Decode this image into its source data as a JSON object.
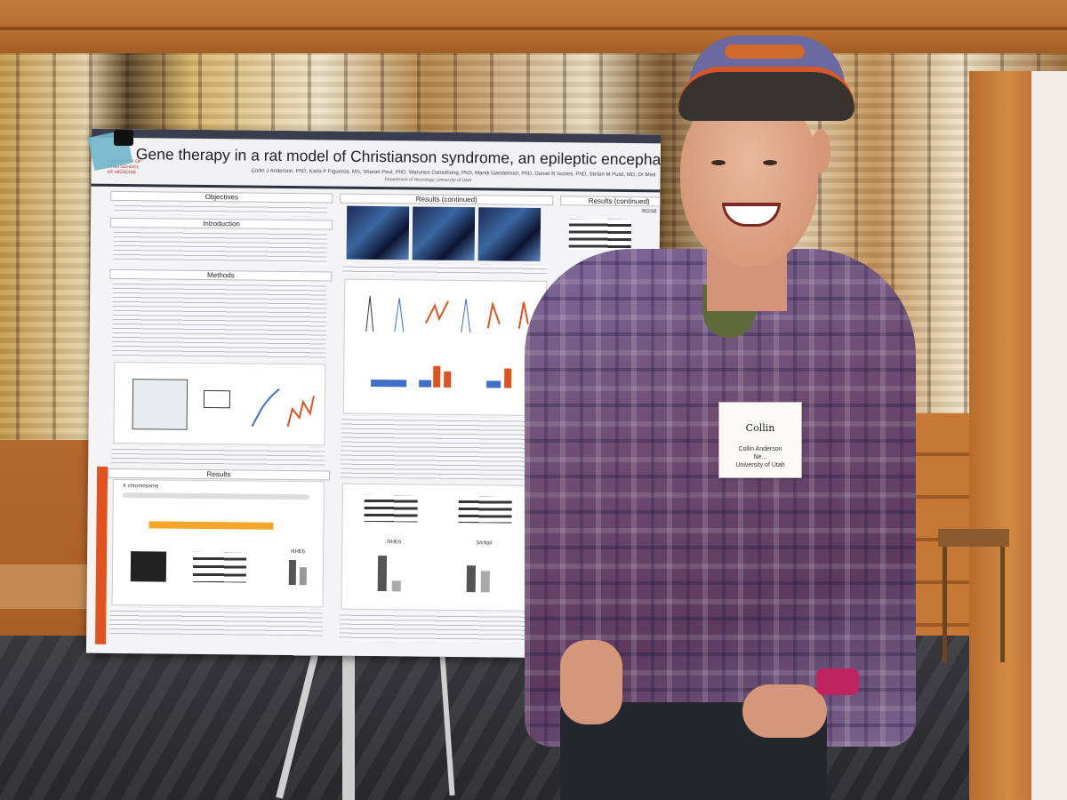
{
  "poster": {
    "title": "Gene therapy in a rat model of Christianson syndrome, an epileptic encephalopathy w",
    "authors": "Collin J Anderson, PhD, Karla P Figueroa, MS, Sharan Paul, PhD, Warunee Dansithong, PhD, Mandi Gandelman, PhD, Daniel R Scoles, PhD, Stefan M Pulst, MD, Dr Med",
    "department": "Department of Neurology, University of Utah",
    "logo_text": "UNIVERSITY OF UTAH SCHOOL OF MEDICINE",
    "sections": {
      "objectives": "Objectives",
      "introduction": "Introduction",
      "methods": "Methods",
      "results": "Results",
      "results_continued_1": "Results (continued)",
      "results_continued_2": "Results (continued)"
    },
    "figure_labels": {
      "nhe6": "NHE6",
      "slc9a6": "Slc9a6",
      "rgs8": "RGS8",
      "x_chromosome": "X chromosome"
    }
  },
  "name_tag": {
    "name": "Collin",
    "line1": "Collin Anderson",
    "line2": "Ne...",
    "line3": "University of Utah"
  }
}
